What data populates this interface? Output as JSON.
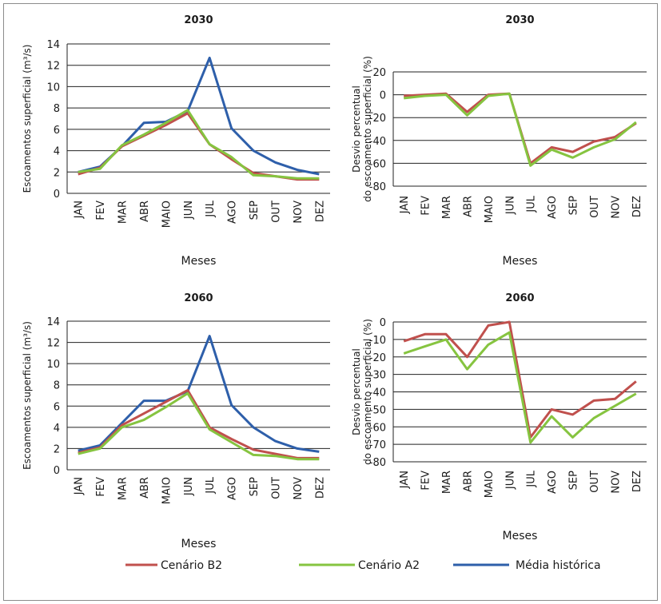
{
  "colors": {
    "b2": "#c0504d",
    "a2": "#86c440",
    "hist": "#2e5faa",
    "grid": "#222222"
  },
  "legend": {
    "b2": "Cenário B2",
    "a2": "Cenário A2",
    "hist": "Média histórica"
  },
  "chart_data": [
    {
      "type": "line",
      "title": "2030",
      "xlabel": "Meses",
      "ylabel": "Escoamentos superficial  (m³/s)",
      "categories": [
        "JAN",
        "FEV",
        "MAR",
        "ABR",
        "MAIO",
        "JUN",
        "JUL",
        "AGO",
        "SEP",
        "OUT",
        "NOV",
        "DEZ"
      ],
      "ylim": [
        0,
        14
      ],
      "yticks": [
        0,
        2,
        4,
        6,
        8,
        10,
        12,
        14
      ],
      "series": [
        {
          "name": "Média histórica",
          "key": "hist",
          "values": [
            2.0,
            2.5,
            4.4,
            6.6,
            6.7,
            7.7,
            12.7,
            6.1,
            4.0,
            2.9,
            2.2,
            1.8
          ]
        },
        {
          "name": "Cenário B2",
          "key": "b2",
          "values": [
            1.8,
            2.4,
            4.4,
            5.4,
            6.4,
            7.5,
            4.6,
            3.2,
            1.9,
            1.6,
            1.3,
            1.3
          ]
        },
        {
          "name": "Cenário A2",
          "key": "a2",
          "values": [
            2.0,
            2.3,
            4.5,
            5.5,
            6.6,
            7.8,
            4.6,
            3.4,
            1.7,
            1.6,
            1.4,
            1.4
          ]
        }
      ]
    },
    {
      "type": "line",
      "title": "2030",
      "xlabel": "Meses",
      "ylabel": "Desvio percentual do escoamento superficial (%)",
      "categories": [
        "JAN",
        "FEV",
        "MAR",
        "ABR",
        "MAIO",
        "JUN",
        "JUL",
        "AGO",
        "SEP",
        "OUT",
        "NOV",
        "DEZ"
      ],
      "ylim": [
        -80,
        20
      ],
      "yticks": [
        -80,
        -60,
        -40,
        -20,
        0,
        20
      ],
      "series": [
        {
          "name": "Cenário B2",
          "key": "b2",
          "values": [
            -1,
            0,
            1,
            -15,
            0,
            1,
            -60,
            -46,
            -50,
            -41,
            -37,
            -25
          ]
        },
        {
          "name": "Cenário A2",
          "key": "a2",
          "values": [
            -3,
            -1,
            0,
            -18,
            -1,
            1,
            -62,
            -48,
            -55,
            -46,
            -39,
            -24
          ]
        }
      ]
    },
    {
      "type": "line",
      "title": "2060",
      "xlabel": "Meses",
      "ylabel": "Escoamentos superficial  (m³/s)",
      "categories": [
        "JAN",
        "FEV",
        "MAR",
        "ABR",
        "MAIO",
        "JUN",
        "JUL",
        "AGO",
        "SEP",
        "OUT",
        "NOV",
        "DEZ"
      ],
      "ylim": [
        0,
        14
      ],
      "yticks": [
        0,
        2,
        4,
        6,
        8,
        10,
        12,
        14
      ],
      "series": [
        {
          "name": "Média histórica",
          "key": "hist",
          "values": [
            1.8,
            2.3,
            4.4,
            6.5,
            6.5,
            7.4,
            12.6,
            6.1,
            4.0,
            2.7,
            2.0,
            1.7
          ]
        },
        {
          "name": "Cenário B2",
          "key": "b2",
          "values": [
            1.6,
            2.1,
            4.2,
            5.3,
            6.4,
            7.5,
            4.0,
            2.9,
            1.9,
            1.5,
            1.1,
            1.1
          ]
        },
        {
          "name": "Cenário A2",
          "key": "a2",
          "values": [
            1.5,
            2.0,
            4.0,
            4.7,
            5.9,
            7.2,
            3.8,
            2.6,
            1.4,
            1.3,
            1.0,
            1.0
          ]
        }
      ]
    },
    {
      "type": "line",
      "title": "2060",
      "xlabel": "Meses",
      "ylabel": "Desvio percentual do escoamento superficial (%)",
      "categories": [
        "JAN",
        "FEV",
        "MAR",
        "ABR",
        "MAIO",
        "JUN",
        "JUL",
        "AGO",
        "SEP",
        "OUT",
        "NOV",
        "DEZ"
      ],
      "ylim": [
        -80,
        0
      ],
      "yticks": [
        -80,
        -70,
        -60,
        -50,
        -40,
        -30,
        -20,
        -10,
        0
      ],
      "series": [
        {
          "name": "Cenário B2",
          "key": "b2",
          "values": [
            -11,
            -7,
            -7,
            -20,
            -2,
            0,
            -66,
            -50,
            -53,
            -45,
            -44,
            -34
          ]
        },
        {
          "name": "Cenário A2",
          "key": "a2",
          "values": [
            -18,
            -14,
            -10,
            -27,
            -13,
            -6,
            -69,
            -54,
            -66,
            -55,
            -48,
            -41
          ]
        }
      ]
    }
  ]
}
